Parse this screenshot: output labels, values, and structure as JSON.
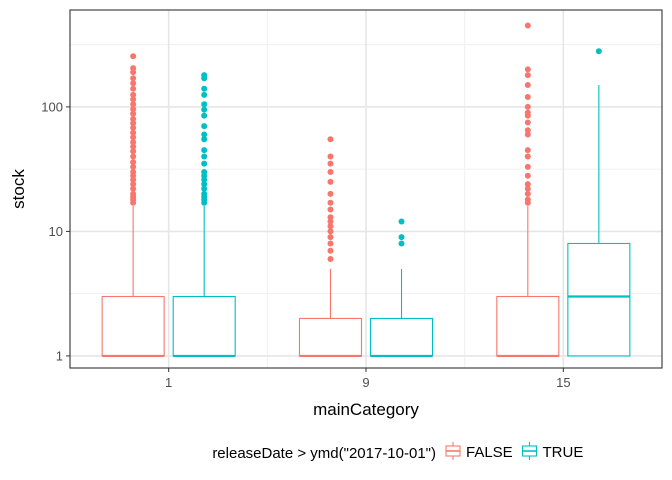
{
  "chart_data": {
    "type": "boxplot",
    "title": "",
    "xlabel": "mainCategory",
    "ylabel": "stock",
    "y_scale": "log10",
    "ylim": [
      0.8,
      600
    ],
    "y_ticks": [
      {
        "value": 1,
        "label": "1"
      },
      {
        "value": 10,
        "label": "10"
      },
      {
        "value": 100,
        "label": "100"
      }
    ],
    "categories": [
      "1",
      "9",
      "15"
    ],
    "grid": true,
    "legend": {
      "title": "releaseDate > ymd(\"2017-10-01\")",
      "position": "bottom",
      "entries": [
        {
          "label": "FALSE",
          "color": "#F8766D"
        },
        {
          "label": "TRUE",
          "color": "#00BFC4"
        }
      ]
    },
    "series": [
      {
        "name": "FALSE",
        "color": "#F8766D",
        "boxes": [
          {
            "category": "1",
            "q1": 1,
            "median": 1,
            "q3": 3,
            "whisker_low": 1,
            "whisker_high": 16,
            "outliers": [
              17,
              18,
              19,
              20,
              22,
              24,
              26,
              28,
              30,
              33,
              36,
              40,
              44,
              48,
              52,
              57,
              62,
              68,
              74,
              80,
              88,
              96,
              105,
              115,
              125,
              140,
              155,
              170,
              190,
              205,
              255
            ]
          },
          {
            "category": "9",
            "q1": 1,
            "median": 1,
            "q3": 2,
            "whisker_low": 1,
            "whisker_high": 5,
            "outliers": [
              6,
              7,
              8,
              9,
              10,
              11,
              12,
              13,
              15,
              17,
              20,
              25,
              30,
              35,
              40,
              55
            ]
          },
          {
            "category": "15",
            "q1": 1,
            "median": 1,
            "q3": 3,
            "whisker_low": 1,
            "whisker_high": 16,
            "outliers": [
              17,
              18,
              20,
              22,
              24,
              28,
              33,
              40,
              45,
              60,
              65,
              75,
              85,
              90,
              100,
              120,
              150,
              180,
              200,
              450
            ]
          }
        ]
      },
      {
        "name": "TRUE",
        "color": "#00BFC4",
        "boxes": [
          {
            "category": "1",
            "q1": 1,
            "median": 1,
            "q3": 3,
            "whisker_low": 1,
            "whisker_high": 16,
            "outliers": [
              17,
              18,
              19,
              20,
              22,
              24,
              26,
              28,
              30,
              35,
              40,
              45,
              55,
              60,
              70,
              85,
              95,
              105,
              125,
              140,
              170,
              180
            ]
          },
          {
            "category": "9",
            "q1": 1,
            "median": 1,
            "q3": 2,
            "whisker_low": 1,
            "whisker_high": 5,
            "outliers": [
              8,
              9,
              12
            ]
          },
          {
            "category": "15",
            "q1": 1,
            "median": 3,
            "q3": 8,
            "whisker_low": 1,
            "whisker_high": 150,
            "outliers": [
              280
            ]
          }
        ]
      }
    ]
  }
}
